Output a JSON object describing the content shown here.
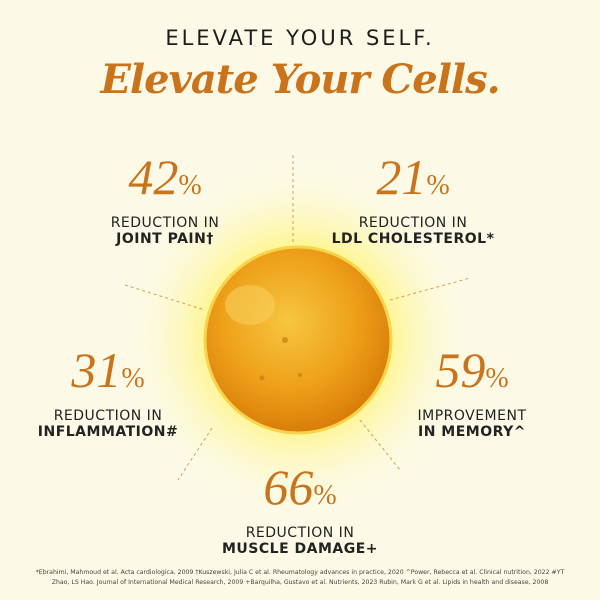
{
  "header": {
    "line1": "ELEVATE YOUR SELF.",
    "line2": "Elevate Your Cells."
  },
  "stats": [
    {
      "value": "42",
      "unit": "%",
      "label": "REDUCTION IN",
      "target": "JOINT PAIN†"
    },
    {
      "value": "21",
      "unit": "%",
      "label": "REDUCTION IN",
      "target": "LDL CHOLESTEROL*"
    },
    {
      "value": "31",
      "unit": "%",
      "label": "REDUCTION IN",
      "target": "INFLAMMATION#"
    },
    {
      "value": "59",
      "unit": "%",
      "label": "IMPROVEMENT",
      "target": "IN MEMORY^"
    },
    {
      "value": "66",
      "unit": "%",
      "label": "REDUCTION IN",
      "target": "MUSCLE DAMAGE+"
    }
  ],
  "footer": {
    "line1": "*Ebrahimi, Mahmoud et al. Acta cardiologica, 2009 †Kuszewski, Julia C et al. Rheumatology advances in practice, 2020 ^Power, Rebecca et al. Clinical nutrition, 2022 #YT",
    "line2": "Zhao, LS Hao. Journal of International Medical Research, 2009 +Barquilha, Gustavo et al. Nutrients, 2023 Rubin, Mark G et al. Lipids in health and disease, 2008"
  },
  "colors": {
    "accent": "#c9741c",
    "background": "#fcfae6",
    "oil": "#f2b21c"
  }
}
